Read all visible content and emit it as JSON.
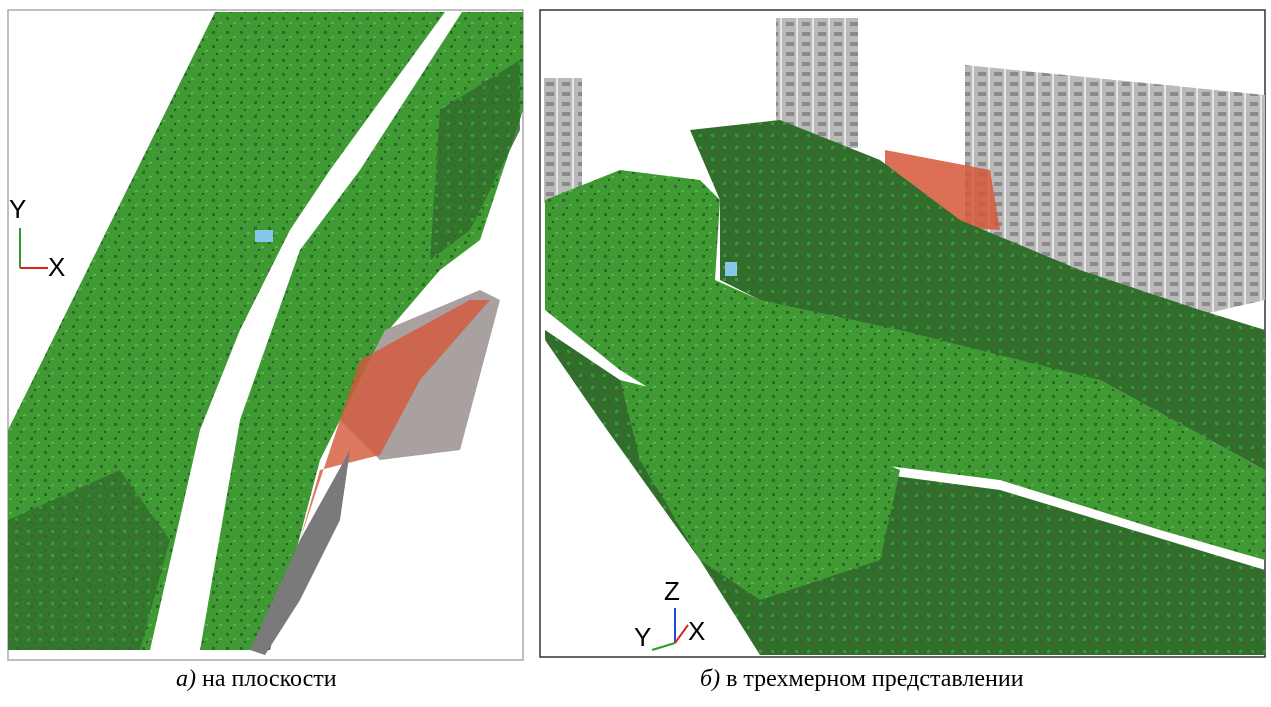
{
  "panels": [
    {
      "axes": {
        "vertical": "Y",
        "horizontal": "X"
      },
      "caption": {
        "label": "а)",
        "text": "на плоскости"
      }
    },
    {
      "axes": {
        "vertical": "Z",
        "depth": "Y",
        "horizontal": "X"
      },
      "caption": {
        "label": "б)",
        "text": "в трехмерном представлении"
      }
    }
  ]
}
